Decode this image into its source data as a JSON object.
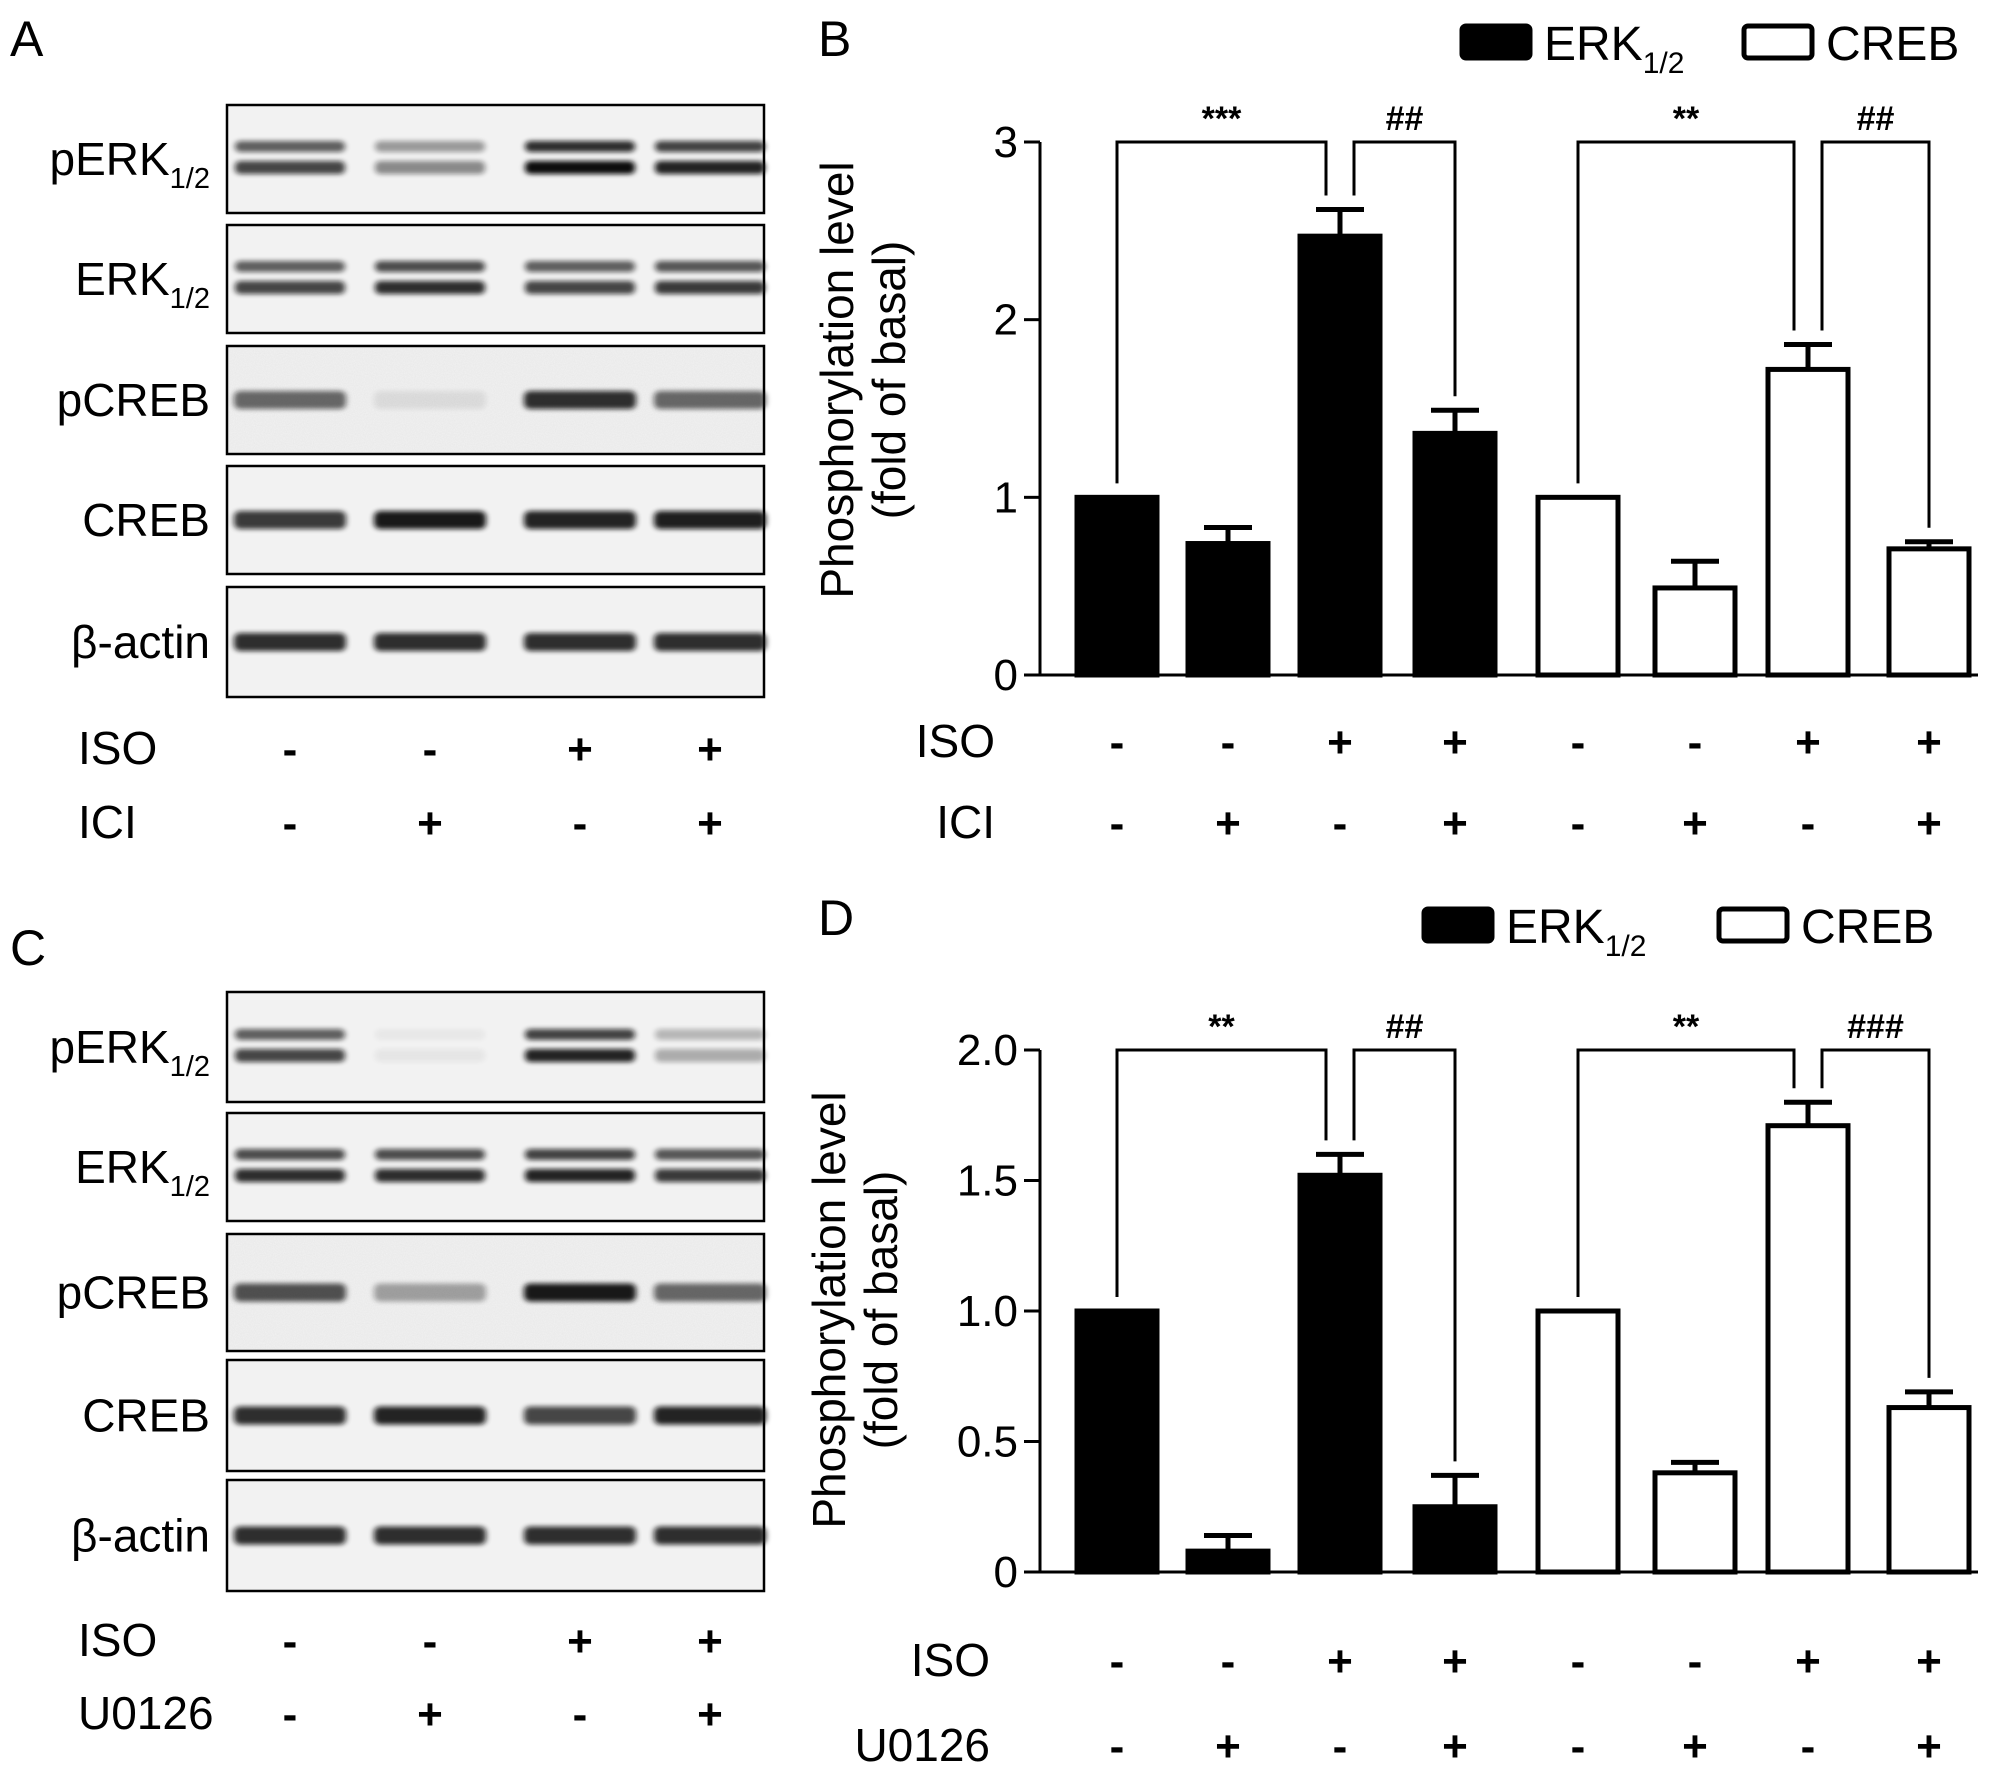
{
  "panels": {
    "A": {
      "letter": "A",
      "blot_labels": [
        "pERK",
        "ERK",
        "pCREB",
        "CREB",
        "β-actin"
      ],
      "subscript": "1/2",
      "treatment_rows": [
        {
          "label": "ISO",
          "signs": [
            "-",
            "-",
            "+",
            "+"
          ]
        },
        {
          "label": "ICI",
          "signs": [
            "-",
            "+",
            "-",
            "+"
          ]
        }
      ]
    },
    "C": {
      "letter": "C",
      "blot_labels": [
        "pERK",
        "ERK",
        "pCREB",
        "CREB",
        "β-actin"
      ],
      "subscript": "1/2",
      "treatment_rows": [
        {
          "label": "ISO",
          "signs": [
            "-",
            "-",
            "+",
            "+"
          ]
        },
        {
          "label": "U0126",
          "signs": [
            "-",
            "+",
            "-",
            "+"
          ]
        }
      ]
    }
  },
  "colors": {
    "filled_bar": "#000000",
    "open_bar": "#ffffff",
    "axis": "#000000"
  },
  "chart_data": [
    {
      "panel": "B",
      "type": "bar",
      "ylabel": [
        "Phosphorylation level",
        "(fold of basal)"
      ],
      "ylim": [
        0,
        3
      ],
      "yticks": [
        0,
        1,
        2,
        3
      ],
      "ytick_labels": [
        "0",
        "1",
        "2",
        "3"
      ],
      "legend": {
        "placement": "top-right",
        "entries": [
          {
            "name": "ERK",
            "sub": "1/2",
            "fill": "filled"
          },
          {
            "name": "CREB",
            "sub": "",
            "fill": "open"
          }
        ]
      },
      "series": [
        {
          "name": "ERK1/2",
          "values": [
            1.0,
            0.74,
            2.47,
            1.36
          ],
          "errors": [
            0,
            0.09,
            0.15,
            0.13
          ]
        },
        {
          "name": "CREB",
          "values": [
            1.0,
            0.49,
            1.72,
            0.71
          ],
          "errors": [
            0,
            0.15,
            0.14,
            0.04
          ]
        }
      ],
      "treatment_rows": [
        {
          "label": "ISO",
          "signs": [
            "-",
            "-",
            "+",
            "+",
            "-",
            "-",
            "+",
            "+"
          ]
        },
        {
          "label": "ICI",
          "signs": [
            "-",
            "+",
            "-",
            "+",
            "-",
            "+",
            "-",
            "+"
          ]
        }
      ],
      "significance": [
        {
          "from": 0,
          "to": 2,
          "label": "***",
          "level": 3.0
        },
        {
          "from": 2,
          "to": 3,
          "label": "##",
          "level": 3.0
        },
        {
          "from": 4,
          "to": 6,
          "label": "**",
          "level": 3.0
        },
        {
          "from": 6,
          "to": 7,
          "label": "##",
          "level": 3.0
        }
      ]
    },
    {
      "panel": "D",
      "type": "bar",
      "ylabel": [
        "Phosphorylation level",
        "(fold of basal)"
      ],
      "ylim": [
        0,
        2.0
      ],
      "yticks": [
        0,
        0.5,
        1.0,
        1.5,
        2.0
      ],
      "ytick_labels": [
        "0",
        "0.5",
        "1.0",
        "1.5",
        "2.0"
      ],
      "legend": {
        "placement": "top-right",
        "entries": [
          {
            "name": "ERK",
            "sub": "1/2",
            "fill": "filled"
          },
          {
            "name": "CREB",
            "sub": "",
            "fill": "open"
          }
        ]
      },
      "series": [
        {
          "name": "ERK1/2",
          "values": [
            1.0,
            0.08,
            1.52,
            0.25
          ],
          "errors": [
            0,
            0.06,
            0.08,
            0.12
          ]
        },
        {
          "name": "CREB",
          "values": [
            1.0,
            0.38,
            1.71,
            0.63
          ],
          "errors": [
            0,
            0.04,
            0.09,
            0.06
          ]
        }
      ],
      "treatment_rows": [
        {
          "label": "ISO",
          "signs": [
            "-",
            "-",
            "+",
            "+",
            "-",
            "-",
            "+",
            "+"
          ]
        },
        {
          "label": "U0126",
          "signs": [
            "-",
            "+",
            "-",
            "+",
            "-",
            "+",
            "-",
            "+"
          ]
        }
      ],
      "significance": [
        {
          "from": 0,
          "to": 2,
          "label": "**",
          "level": 2.0
        },
        {
          "from": 2,
          "to": 3,
          "label": "##",
          "level": 2.0
        },
        {
          "from": 4,
          "to": 6,
          "label": "**",
          "level": 2.0
        },
        {
          "from": 6,
          "to": 7,
          "label": "###",
          "level": 2.0
        }
      ]
    }
  ]
}
